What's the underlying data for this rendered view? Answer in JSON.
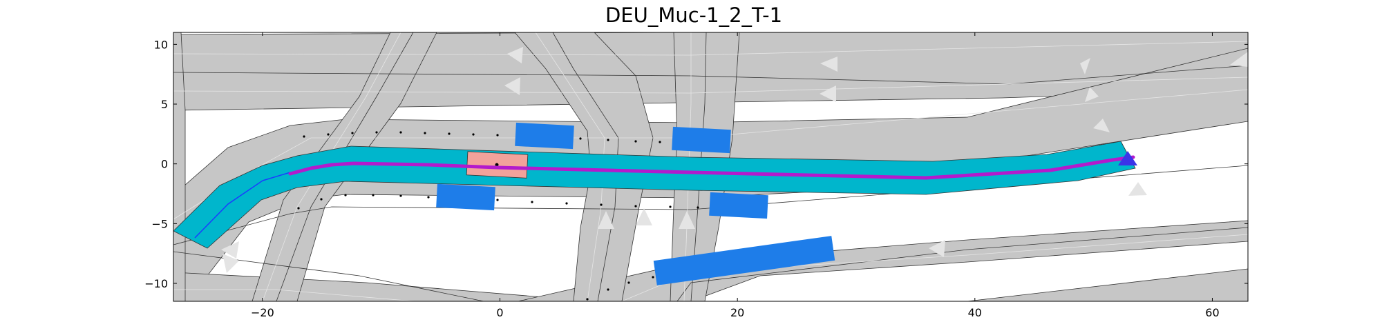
{
  "title": "DEU_Muc-1_2_T-1",
  "x_ticks": [
    {
      "value": -20,
      "label": "−20"
    },
    {
      "value": 0,
      "label": "0"
    },
    {
      "value": 20,
      "label": "20"
    },
    {
      "value": 40,
      "label": "40"
    },
    {
      "value": 60,
      "label": "60"
    }
  ],
  "y_ticks": [
    {
      "value": 10,
      "label": "10"
    },
    {
      "value": 5,
      "label": "5"
    },
    {
      "value": 0,
      "label": "0"
    },
    {
      "value": -5,
      "label": "−5"
    },
    {
      "value": -10,
      "label": "−10"
    }
  ],
  "x_range": [
    -27.5,
    63
  ],
  "y_range": [
    -11.5,
    11
  ],
  "colors": {
    "road": "#c6c6c6",
    "lane_border": "#333333",
    "lane_center": "#e6e6e6",
    "route_corridor": "#00b6cc",
    "ego_vehicle": "#f2a29b",
    "other_vehicle": "#1e7de9",
    "planned_path": "#b31acc",
    "goal_marker": "#3b34e8",
    "trajectory_dots": "#000000",
    "direction_arrow": "#e4e4e4"
  },
  "legend": "none",
  "grid": false
}
